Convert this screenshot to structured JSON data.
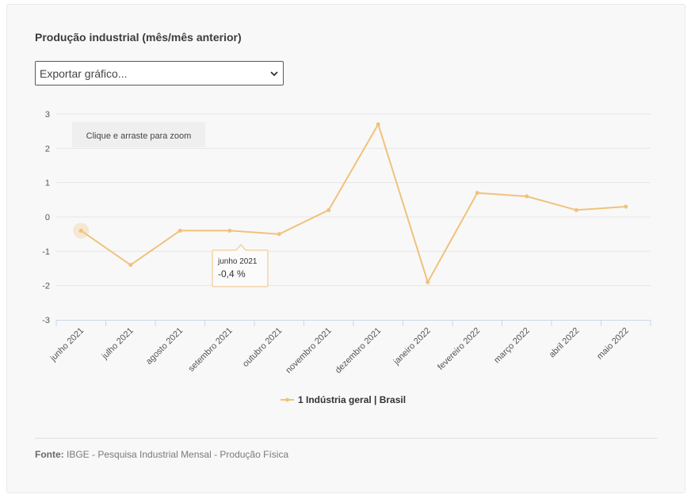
{
  "title": "Produção industrial (mês/mês anterior)",
  "export": {
    "label": "Exportar gráfico...",
    "icon": "chevron-down-icon"
  },
  "zoom_hint": "Clique e arraste para zoom",
  "tooltip": {
    "category": "junho 2021",
    "value": "-0,4 %"
  },
  "source": {
    "label": "Fonte:",
    "text": "IBGE - Pesquisa Industrial Mensal - Produção Física"
  },
  "colors": {
    "series": "#f0c27b",
    "grid": "#e6e6e6",
    "axis": "#ccd6eb",
    "text": "#555555"
  },
  "chart_data": {
    "type": "line",
    "title": "Produção industrial (mês/mês anterior)",
    "categories": [
      "junho 2021",
      "julho 2021",
      "agosto 2021",
      "setembro 2021",
      "outubro 2021",
      "novembro 2021",
      "dezembro 2021",
      "janeiro 2022",
      "fevereiro 2022",
      "março 2022",
      "abril 2022",
      "maio 2022"
    ],
    "series": [
      {
        "name": "1 Indústria geral | Brasil",
        "values": [
          -0.4,
          -1.4,
          -0.4,
          -0.4,
          -0.5,
          0.2,
          2.7,
          -1.9,
          0.7,
          0.6,
          0.2,
          0.3
        ]
      }
    ],
    "ylim": [
      -3,
      3
    ],
    "yticks": [
      "3",
      "2",
      "1",
      "0",
      "-1",
      "-2",
      "-3"
    ],
    "xlabel": "",
    "ylabel": "",
    "legend": "bottom-center",
    "grid": true
  }
}
